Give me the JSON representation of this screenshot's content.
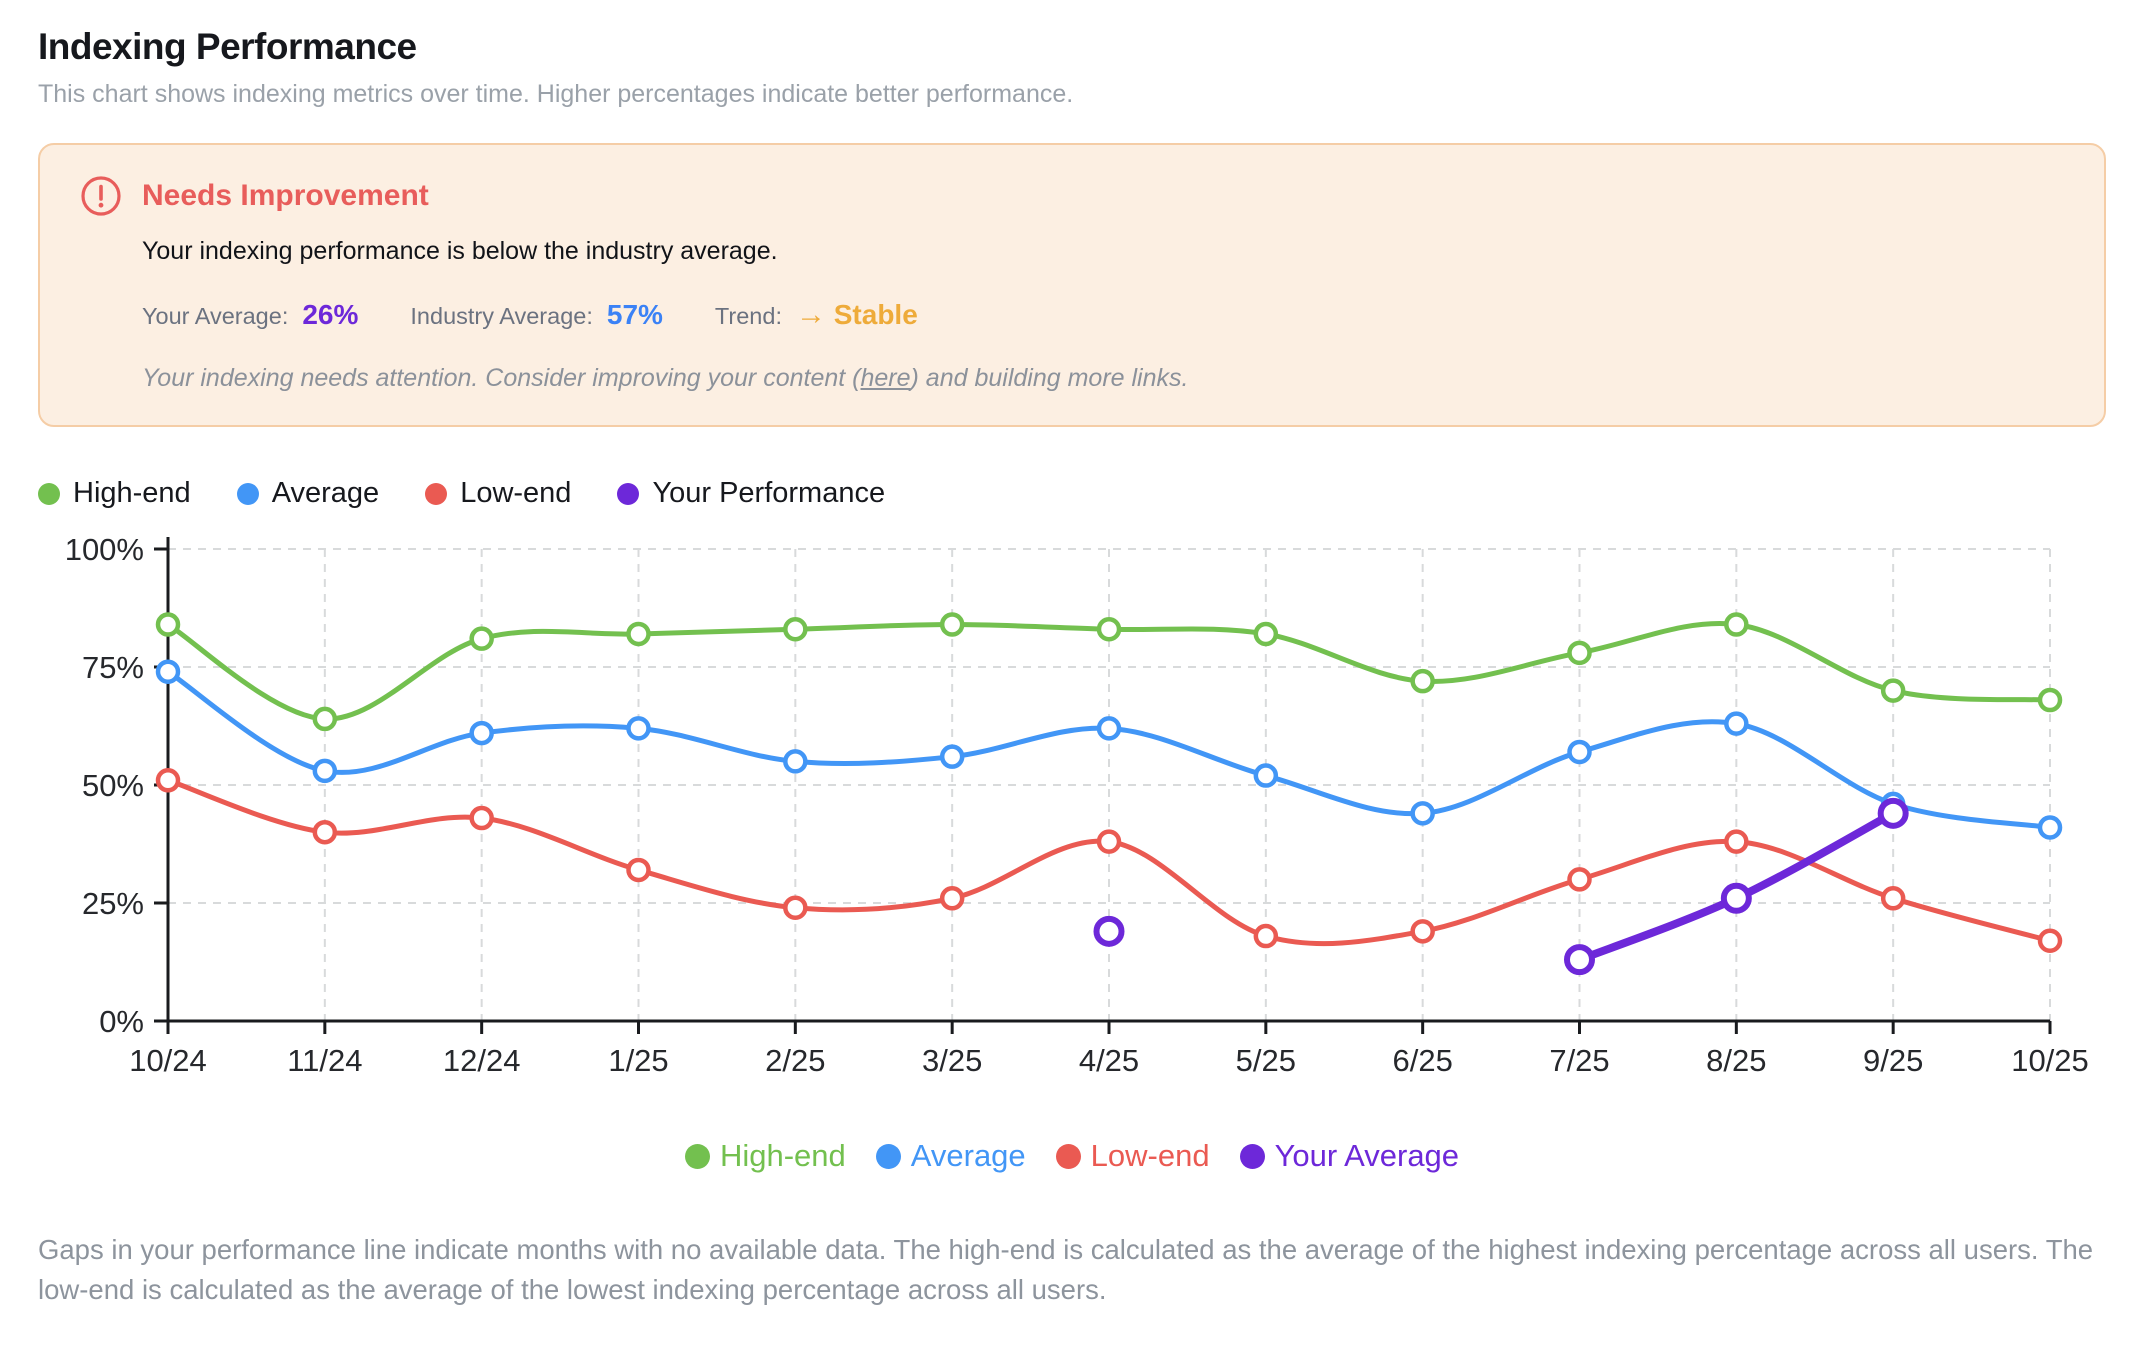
{
  "page": {
    "title": "Indexing Performance",
    "subtitle": "This chart shows indexing metrics over time. Higher percentages indicate better performance.",
    "footer": "Gaps in your performance line indicate months with no available data. The high-end is calculated as the average of the highest indexing percentage across all users. The low-end is calculated as the average of the lowest indexing percentage across all users."
  },
  "alert": {
    "title": "Needs Improvement",
    "message": "Your indexing performance is below the industry average.",
    "stats": {
      "your_average_label": "Your Average:",
      "your_average_value": "26%",
      "industry_average_label": "Industry Average:",
      "industry_average_value": "57%",
      "trend_label": "Trend:",
      "trend_arrow": "→",
      "trend_value": "Stable"
    },
    "note": {
      "before_link": "Your indexing needs attention. Consider improving your content (",
      "link": "here",
      "after_link": ") and building more links."
    }
  },
  "colors": {
    "high_end": "#73c04f",
    "average": "#4296f6",
    "low_end": "#ea5a52",
    "your_performance": "#6d28d9",
    "trend_amber": "#eeab3a",
    "alert_red": "#e85d5b",
    "alert_bg": "#fcefe2",
    "alert_border": "#f5cda6"
  },
  "legend_top": [
    {
      "label": "High-end",
      "color": "#73c04f"
    },
    {
      "label": "Average",
      "color": "#4296f6"
    },
    {
      "label": "Low-end",
      "color": "#ea5a52"
    },
    {
      "label": "Your Performance",
      "color": "#6d28d9"
    }
  ],
  "legend_bottom": [
    {
      "label": "High-end",
      "color": "#73c04f"
    },
    {
      "label": "Average",
      "color": "#4296f6"
    },
    {
      "label": "Low-end",
      "color": "#ea5a52"
    },
    {
      "label": "Your Average",
      "color": "#6d28d9"
    }
  ],
  "chart_data": {
    "type": "line",
    "title": "",
    "xlabel": "",
    "ylabel": "",
    "x": [
      "10/24",
      "11/24",
      "12/24",
      "1/25",
      "2/25",
      "3/25",
      "4/25",
      "5/25",
      "6/25",
      "7/25",
      "8/25",
      "9/25",
      "10/25"
    ],
    "series": [
      {
        "name": "High-end",
        "color": "#73c04f",
        "line_width": 5,
        "marker_radius": 10,
        "marker_stroke": 4.5,
        "values": [
          84,
          64,
          81,
          82,
          83,
          84,
          83,
          82,
          72,
          78,
          84,
          70,
          68
        ]
      },
      {
        "name": "Average",
        "color": "#4296f6",
        "line_width": 5,
        "marker_radius": 10,
        "marker_stroke": 4.5,
        "values": [
          74,
          53,
          61,
          62,
          55,
          56,
          62,
          52,
          44,
          57,
          63,
          46,
          41
        ]
      },
      {
        "name": "Low-end",
        "color": "#ea5a52",
        "line_width": 5,
        "marker_radius": 10,
        "marker_stroke": 4.5,
        "values": [
          51,
          40,
          43,
          32,
          24,
          26,
          38,
          18,
          19,
          30,
          38,
          26,
          17
        ]
      },
      {
        "name": "Your Performance",
        "color": "#6d28d9",
        "line_width": 8,
        "marker_radius": 12.5,
        "marker_stroke": 6,
        "values": [
          null,
          null,
          null,
          null,
          null,
          null,
          19,
          null,
          null,
          13,
          26,
          44,
          null
        ]
      }
    ],
    "ylim": [
      0,
      100
    ],
    "yticks": [
      0,
      25,
      50,
      75,
      100
    ],
    "ytick_labels": [
      "0%",
      "25%",
      "50%",
      "75%",
      "100%"
    ],
    "grid": "dashed",
    "legend_position": "top-left and bottom-center",
    "notes": "Your Performance line has gaps; 4/25 is an isolated point"
  }
}
